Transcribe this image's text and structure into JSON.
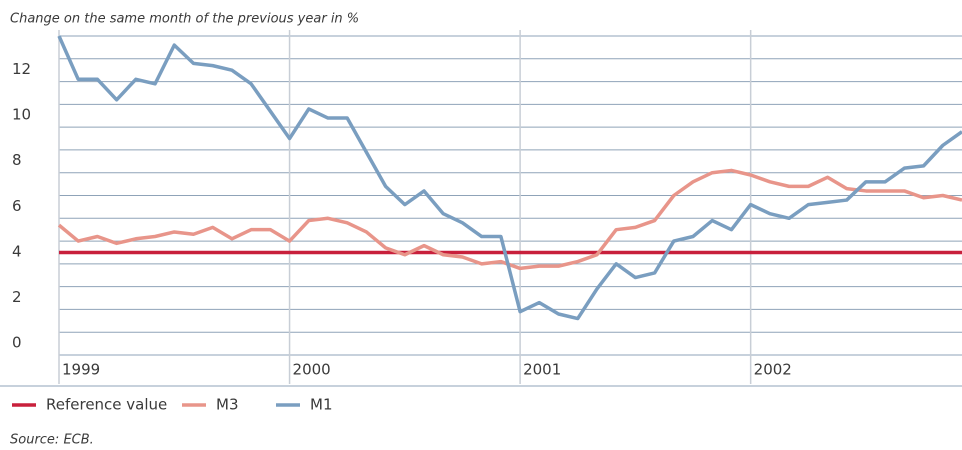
{
  "chart_data": {
    "type": "line",
    "title": "Change on the same month of the previous year in %",
    "source": "Source: ECB.",
    "categories": [
      "1999",
      null,
      null,
      null,
      null,
      null,
      null,
      null,
      null,
      null,
      null,
      null,
      "2000",
      null,
      null,
      null,
      null,
      null,
      null,
      null,
      null,
      null,
      null,
      null,
      "2001",
      null,
      null,
      null,
      null,
      null,
      null,
      null,
      null,
      null,
      null,
      null,
      "2002",
      null,
      null,
      null,
      null,
      null,
      null,
      null,
      null,
      null,
      null,
      null
    ],
    "reference_line": {
      "name": "Reference value",
      "color": "#c8203c",
      "value": 4.5
    },
    "series": [
      {
        "name": "M3",
        "color": "#e8958a",
        "values": [
          5.7,
          5.0,
          5.2,
          4.9,
          5.1,
          5.2,
          5.4,
          5.3,
          5.6,
          5.1,
          5.5,
          5.5,
          5.0,
          5.9,
          6.0,
          5.8,
          5.4,
          4.7,
          4.4,
          4.8,
          4.4,
          4.3,
          4.0,
          4.1,
          3.8,
          3.9,
          3.9,
          4.1,
          4.4,
          5.5,
          5.6,
          5.9,
          7.0,
          7.6,
          8.0,
          8.1,
          7.9,
          7.6,
          7.4,
          7.4,
          7.8,
          7.3,
          7.2,
          7.2,
          7.2,
          6.9,
          7.0,
          6.8
        ]
      },
      {
        "name": "M1",
        "color": "#7a9ec0",
        "values": [
          14.0,
          12.1,
          12.1,
          11.2,
          12.1,
          11.9,
          13.6,
          12.8,
          12.7,
          12.5,
          11.9,
          10.7,
          9.5,
          10.8,
          10.4,
          10.4,
          8.9,
          7.4,
          6.6,
          7.2,
          6.2,
          5.8,
          5.2,
          5.2,
          1.9,
          2.3,
          1.8,
          1.6,
          2.9,
          4.0,
          3.4,
          3.6,
          5.0,
          5.2,
          5.9,
          5.5,
          6.6,
          6.2,
          6.0,
          6.6,
          6.7,
          6.8,
          7.6,
          7.6,
          8.2,
          8.3,
          9.2,
          9.8
        ]
      }
    ],
    "ylim": [
      0,
      14
    ],
    "yticks": [
      0,
      2,
      4,
      6,
      8,
      10,
      12
    ],
    "minor_yticks": [
      1,
      3,
      5,
      7,
      9,
      11,
      13,
      14
    ],
    "grid": true
  }
}
